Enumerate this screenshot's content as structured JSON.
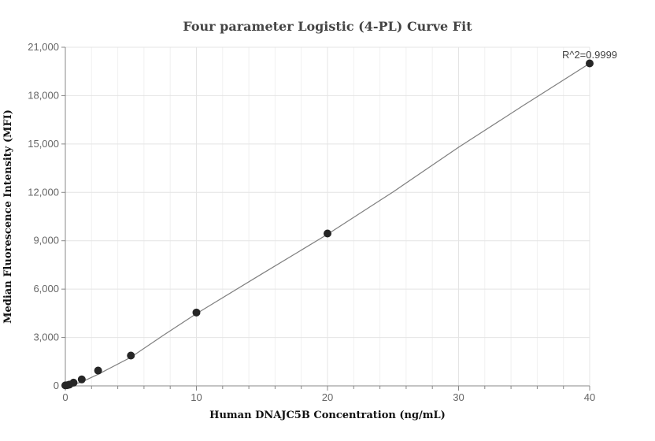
{
  "chart_data": {
    "type": "scatter",
    "title": "Four parameter Logistic (4-PL) Curve Fit",
    "xlabel": "Human DNAJC5B Concentration (ng/mL)",
    "ylabel": "Median Fluorescence Intensity (MFI)",
    "xlim": [
      0,
      40
    ],
    "ylim": [
      0,
      21000
    ],
    "x_ticks": [
      0,
      10,
      20,
      30,
      40
    ],
    "x_tick_labels": [
      "0",
      "10",
      "20",
      "30",
      "40"
    ],
    "y_ticks": [
      0,
      3000,
      6000,
      9000,
      12000,
      15000,
      18000,
      21000
    ],
    "y_tick_labels": [
      "0",
      "3,000",
      "6,000",
      "9,000",
      "12,000",
      "15,000",
      "18,000",
      "21,000"
    ],
    "grid": true,
    "series": [
      {
        "x": [
          0,
          0.156,
          0.313,
          0.625,
          1.25,
          2.5,
          5,
          10,
          20,
          40
        ],
        "y": [
          30,
          45,
          80,
          200,
          400,
          950,
          1880,
          4550,
          9450,
          20000
        ],
        "marker_color": "#262626"
      }
    ],
    "fit_curve": {
      "x": [
        0,
        0.625,
        1.25,
        2.5,
        5,
        7.5,
        10,
        15,
        20,
        25,
        30,
        35,
        40
      ],
      "y": [
        50,
        100,
        240,
        720,
        1780,
        3150,
        4480,
        6950,
        9400,
        12030,
        14800,
        17420,
        20000
      ],
      "color": "#7f7f7f"
    },
    "annotation": "R^2=0.9999"
  }
}
